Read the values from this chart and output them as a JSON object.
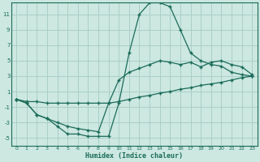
{
  "title": "",
  "xlabel": "Humidex (Indice chaleur)",
  "ylabel": "",
  "bg_color": "#cce8e0",
  "grid_color": "#aacfc8",
  "line_color": "#1a6b5a",
  "x_ticks": [
    0,
    1,
    2,
    3,
    4,
    5,
    6,
    7,
    8,
    9,
    10,
    11,
    12,
    13,
    14,
    15,
    16,
    17,
    18,
    19,
    20,
    21,
    22,
    23
  ],
  "y_ticks": [
    -5,
    -3,
    -1,
    1,
    3,
    5,
    7,
    9,
    11
  ],
  "ylim": [
    -6.0,
    12.5
  ],
  "xlim": [
    -0.5,
    23.5
  ],
  "series": [
    {
      "x": [
        0,
        1,
        2,
        3,
        4,
        5,
        6,
        7,
        8,
        9,
        10,
        11,
        12,
        13,
        14,
        15,
        16,
        17,
        18,
        19,
        20,
        21,
        22,
        23
      ],
      "y": [
        0,
        -0.5,
        -2,
        -2.5,
        -3.5,
        -4.5,
        -4.5,
        -4.8,
        -4.8,
        -4.8,
        -0.5,
        6,
        11,
        12.5,
        12.5,
        12,
        9,
        6,
        5,
        4.5,
        4.3,
        3.5,
        3.2,
        3.0
      ]
    },
    {
      "x": [
        0,
        1,
        2,
        3,
        4,
        5,
        6,
        7,
        8,
        9,
        10,
        11,
        12,
        13,
        14,
        15,
        16,
        17,
        18,
        19,
        20,
        21,
        22,
        23
      ],
      "y": [
        0,
        -0.5,
        -2,
        -2.5,
        -3,
        -3.5,
        -3.8,
        -4,
        -4.2,
        -0.5,
        2.5,
        3.5,
        4,
        4.5,
        5,
        4.8,
        4.5,
        4.8,
        4.2,
        4.8,
        5,
        4.5,
        4.2,
        3.2
      ]
    },
    {
      "x": [
        0,
        1,
        2,
        3,
        4,
        5,
        6,
        7,
        8,
        9,
        10,
        11,
        12,
        13,
        14,
        15,
        16,
        17,
        18,
        19,
        20,
        21,
        22,
        23
      ],
      "y": [
        0,
        -0.3,
        -0.3,
        -0.5,
        -0.5,
        -0.5,
        -0.5,
        -0.5,
        -0.5,
        -0.5,
        -0.3,
        0,
        0.3,
        0.5,
        0.8,
        1.0,
        1.3,
        1.5,
        1.8,
        2.0,
        2.2,
        2.5,
        2.8,
        3.0
      ]
    }
  ]
}
